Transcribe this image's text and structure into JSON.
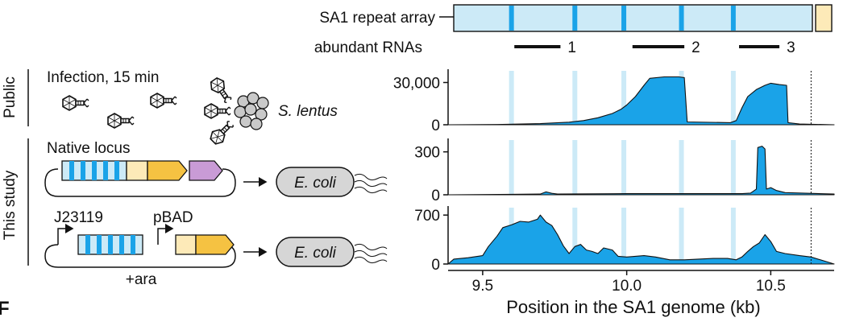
{
  "repeat_array": {
    "label": "SA1 repeat array",
    "rnas_label": "abundant RNAs",
    "rna_labels": [
      "1",
      "2",
      "3"
    ]
  },
  "left": {
    "public_label": "Public",
    "study_label": "This study",
    "infection_label": "Infection, 15 min",
    "host_label": "S. lentus",
    "native_label": "Native locus",
    "ecoli_label": "E. coli",
    "promoter1_label": "J23119",
    "promoter2_label": "pBAD",
    "ara_label": "+ara",
    "panel_letter_fragment": "F"
  },
  "colors": {
    "fill": "#1aa3e8",
    "repeat_box": "#cceaf7",
    "spacer": "#1aa3e8",
    "leader": "#fdeab8",
    "gene_yellow": "#f5c242",
    "gene_purple": "#c99bd6",
    "ecoli_fill": "#d6d6d6"
  },
  "chart_data": {
    "type": "area",
    "xlabel": "Position in the SA1 genome (kb)",
    "xlim": [
      9.38,
      10.72
    ],
    "xticks": [
      9.5,
      10.0,
      10.5
    ],
    "xtick_labels": [
      "9.5",
      "10.0",
      "10.5"
    ],
    "repeat_positions_kb": [
      9.6,
      9.82,
      9.99,
      10.19,
      10.37
    ],
    "end_marker_kb": 10.64,
    "rna_segments_kb": [
      [
        9.61,
        9.77
      ],
      [
        10.02,
        10.2
      ],
      [
        10.39,
        10.53
      ]
    ],
    "tracks": [
      {
        "ylim": [
          0,
          36000
        ],
        "yticks": [
          0,
          30000
        ],
        "ytick_labels": [
          "0",
          "30,000"
        ],
        "x": [
          9.38,
          9.55,
          9.7,
          9.8,
          9.85,
          9.9,
          9.95,
          9.98,
          10.0,
          10.03,
          10.06,
          10.08,
          10.13,
          10.18,
          10.2,
          10.21,
          10.36,
          10.38,
          10.4,
          10.42,
          10.45,
          10.48,
          10.5,
          10.53,
          10.555,
          10.56,
          10.6,
          10.72
        ],
        "y": [
          0,
          200,
          800,
          1800,
          3000,
          5000,
          8000,
          11000,
          14000,
          20000,
          28000,
          33000,
          34000,
          34000,
          33500,
          2000,
          1500,
          3000,
          12000,
          20000,
          25000,
          28000,
          29500,
          28500,
          28000,
          1500,
          500,
          0
        ]
      },
      {
        "ylim": [
          0,
          360
        ],
        "yticks": [
          0,
          300
        ],
        "ytick_labels": [
          "0",
          "300"
        ],
        "x": [
          9.38,
          9.7,
          9.72,
          9.74,
          9.76,
          10.0,
          10.4,
          10.43,
          10.45,
          10.455,
          10.47,
          10.48,
          10.485,
          10.5,
          10.52,
          10.55,
          10.72
        ],
        "y": [
          0,
          5,
          20,
          10,
          5,
          8,
          8,
          12,
          40,
          330,
          340,
          320,
          40,
          50,
          30,
          15,
          5
        ]
      },
      {
        "ylim": [
          0,
          760
        ],
        "yticks": [
          0,
          700
        ],
        "ytick_labels": [
          "0",
          "700"
        ],
        "x": [
          9.38,
          9.4,
          9.45,
          9.5,
          9.52,
          9.55,
          9.57,
          9.6,
          9.63,
          9.66,
          9.69,
          9.7,
          9.72,
          9.74,
          9.76,
          9.78,
          9.8,
          9.82,
          9.84,
          9.86,
          9.88,
          9.9,
          9.92,
          9.95,
          9.97,
          10.0,
          10.03,
          10.06,
          10.1,
          10.15,
          10.2,
          10.25,
          10.3,
          10.35,
          10.38,
          10.4,
          10.42,
          10.44,
          10.46,
          10.48,
          10.5,
          10.52,
          10.55,
          10.6,
          10.64,
          10.72
        ],
        "y": [
          0,
          70,
          90,
          120,
          250,
          400,
          520,
          560,
          610,
          600,
          640,
          700,
          600,
          550,
          420,
          260,
          150,
          250,
          280,
          200,
          180,
          150,
          230,
          200,
          110,
          100,
          110,
          120,
          100,
          60,
          60,
          70,
          80,
          80,
          60,
          100,
          180,
          250,
          300,
          420,
          320,
          180,
          150,
          120,
          100,
          0
        ]
      }
    ]
  }
}
